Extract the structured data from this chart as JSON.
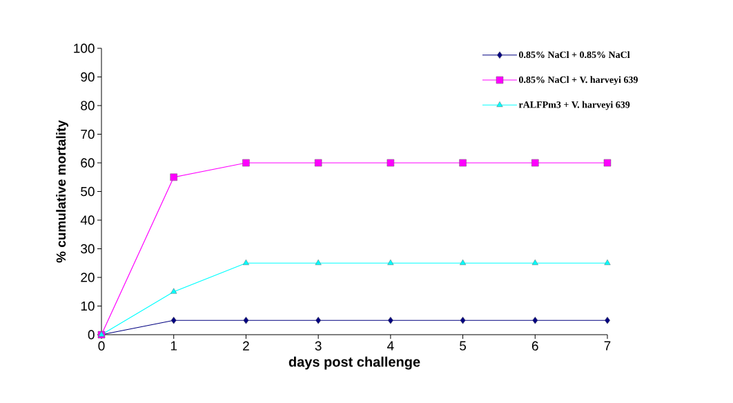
{
  "chart_data": {
    "type": "line",
    "xlabel": "days post challenge",
    "ylabel": "% cumulative mortality",
    "x": [
      0,
      1,
      2,
      3,
      4,
      5,
      6,
      7
    ],
    "series": [
      {
        "name": "0.85% NaCl + 0.85% NaCl",
        "color": "#000080",
        "marker": "diamond",
        "values": [
          0,
          5,
          5,
          5,
          5,
          5,
          5,
          5
        ]
      },
      {
        "name": "0.85% NaCl + V. harveyi 639",
        "color": "#ff00ff",
        "marker": "square",
        "values": [
          0,
          55,
          60,
          60,
          60,
          60,
          60,
          60
        ]
      },
      {
        "name": "rALFPm3 + V. harveyi 639",
        "color": "#00ffff",
        "marker": "triangle",
        "values": [
          0,
          15,
          25,
          25,
          25,
          25,
          25,
          25
        ]
      }
    ],
    "xlim": [
      0,
      7
    ],
    "ylim": [
      0,
      100
    ],
    "xticks": [
      0,
      1,
      2,
      3,
      4,
      5,
      6,
      7
    ],
    "yticks": [
      0,
      10,
      20,
      30,
      40,
      50,
      60,
      70,
      80,
      90,
      100
    ],
    "grid": false,
    "legend": "top right"
  }
}
